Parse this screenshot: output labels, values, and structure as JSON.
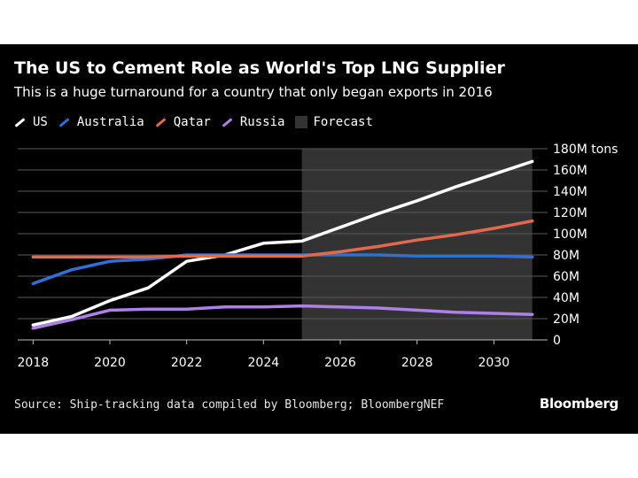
{
  "chart_data": {
    "type": "line",
    "title": "The US to Cement Role as World's Top LNG Supplier",
    "subtitle": "This is a huge turnaround for a country that only began exports in 2016",
    "x": [
      2018,
      2019,
      2020,
      2021,
      2022,
      2023,
      2024,
      2025,
      2026,
      2027,
      2028,
      2029,
      2030,
      2031
    ],
    "series": [
      {
        "name": "US",
        "color": "#ffffff",
        "values": [
          14,
          22,
          37,
          49,
          74,
          80,
          91,
          93,
          106,
          119,
          131,
          144,
          156,
          168
        ]
      },
      {
        "name": "Australia",
        "color": "#2f6fd6",
        "values": [
          53,
          66,
          74,
          76,
          80,
          80,
          80,
          80,
          80,
          80,
          79,
          79,
          79,
          78
        ]
      },
      {
        "name": "Qatar",
        "color": "#e0694e",
        "values": [
          78,
          78,
          78,
          78,
          79,
          79,
          79,
          79,
          83,
          88,
          94,
          99,
          105,
          112
        ]
      },
      {
        "name": "Russia",
        "color": "#b07fe8",
        "values": [
          11,
          19,
          28,
          29,
          29,
          31,
          31,
          32,
          31,
          30,
          28,
          26,
          25,
          24
        ]
      }
    ],
    "forecast": {
      "label": "Forecast",
      "start": 2025,
      "end": 2031,
      "color": "#333333"
    },
    "ylim": [
      0,
      180
    ],
    "xlim": [
      2017.6,
      2031.4
    ],
    "yticks": [
      0,
      20,
      40,
      60,
      80,
      100,
      120,
      140,
      160,
      180
    ],
    "ytick_labels": [
      "0",
      "20M",
      "40M",
      "60M",
      "80M",
      "100M",
      "120M",
      "140M",
      "160M",
      "180M tons"
    ],
    "xticks": [
      2018,
      2020,
      2022,
      2024,
      2026,
      2028,
      2030
    ],
    "xtick_labels": [
      "2018",
      "2020",
      "2022",
      "2024",
      "2026",
      "2028",
      "2030"
    ],
    "grid": true,
    "legend_position": "top-left"
  },
  "legend": {
    "us": "US",
    "australia": "Australia",
    "qatar": "Qatar",
    "russia": "Russia",
    "forecast": "Forecast"
  },
  "footer": {
    "source": "Source: Ship-tracking data compiled by Bloomberg; BloombergNEF",
    "brand": "Bloomberg"
  }
}
